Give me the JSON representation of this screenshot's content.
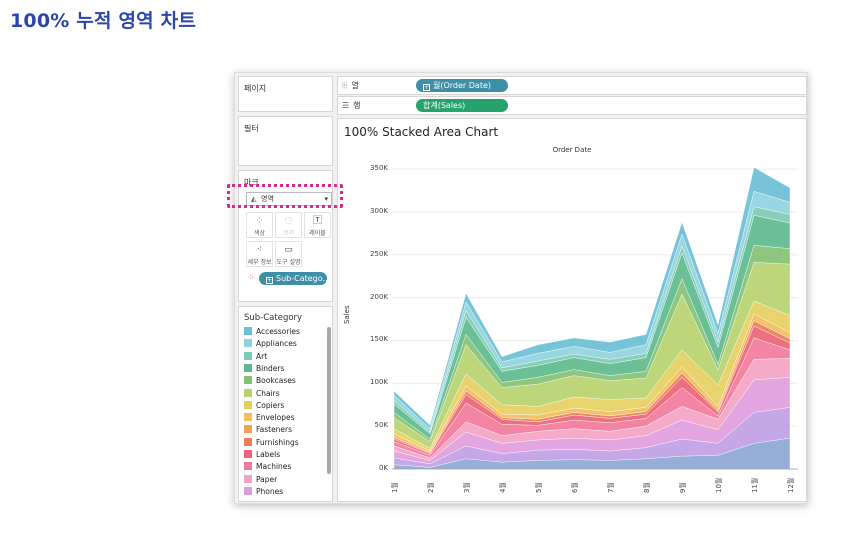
{
  "page": {
    "title": "100% 누적 영역 차트"
  },
  "panels": {
    "pages": "페이지",
    "filters": "필터",
    "marks": "마크",
    "legend_title": "Sub-Category"
  },
  "shelves": {
    "columns": {
      "label": "열",
      "pill": "월(Order Date)"
    },
    "rows": {
      "label": "행",
      "pill": "합계(Sales)"
    }
  },
  "marks": {
    "type": "영역",
    "buttons": [
      "색상",
      "크기",
      "레이블",
      "세부 정보",
      "도구 설명"
    ],
    "color_pill": "Sub-Catego.."
  },
  "legend": [
    {
      "name": "Accessories",
      "color": "#6bbfd6"
    },
    {
      "name": "Appliances",
      "color": "#8fd3de"
    },
    {
      "name": "Art",
      "color": "#7ccbb4"
    },
    {
      "name": "Binders",
      "color": "#5dba8e"
    },
    {
      "name": "Bookcases",
      "color": "#84c174"
    },
    {
      "name": "Chairs",
      "color": "#b7d36e"
    },
    {
      "name": "Copiers",
      "color": "#e6d063"
    },
    {
      "name": "Envelopes",
      "color": "#f3be5a"
    },
    {
      "name": "Fasteners",
      "color": "#f5a052"
    },
    {
      "name": "Furnishings",
      "color": "#ec7b5a"
    },
    {
      "name": "Labels",
      "color": "#ec6476"
    },
    {
      "name": "Machines",
      "color": "#f2799b"
    },
    {
      "name": "Paper",
      "color": "#f5a3c4"
    },
    {
      "name": "Phones",
      "color": "#e09ddc"
    }
  ],
  "chart_data": {
    "type": "area",
    "title": "100% Stacked Area Chart",
    "subtitle": "Order Date",
    "ylabel": "Sales",
    "ylim": [
      0,
      350000
    ],
    "yticks": [
      "0K",
      "50K",
      "100K",
      "150K",
      "200K",
      "250K",
      "300K",
      "350K"
    ],
    "categories": [
      "1월",
      "2월",
      "3월",
      "4월",
      "5월",
      "6월",
      "7월",
      "8월",
      "9월",
      "10월",
      "11월",
      "12월"
    ],
    "series": [
      {
        "color": "#8ea7d6",
        "values": [
          5000,
          2000,
          12000,
          8000,
          10000,
          11000,
          10000,
          12000,
          15000,
          16000,
          30000,
          36000
        ]
      },
      {
        "color": "#c09ee4",
        "values": [
          8000,
          4000,
          15000,
          10000,
          12000,
          12000,
          11000,
          13000,
          20000,
          14000,
          36000,
          36000
        ]
      },
      {
        "color": "#e09ddc",
        "values": [
          8000,
          4000,
          16000,
          12000,
          12000,
          13000,
          13000,
          14000,
          22000,
          16000,
          38000,
          35000
        ]
      },
      {
        "color": "#f5a3c4",
        "values": [
          6000,
          3000,
          12000,
          9000,
          10000,
          11000,
          10000,
          11000,
          16000,
          12000,
          24000,
          22000
        ]
      },
      {
        "color": "#f2799b",
        "values": [
          5000,
          3000,
          22000,
          13000,
          7000,
          10000,
          10000,
          9000,
          22000,
          4000,
          25000,
          10000
        ]
      },
      {
        "color": "#ec6476",
        "values": [
          3000,
          2000,
          10000,
          6000,
          4000,
          6000,
          5000,
          5000,
          12000,
          4000,
          14000,
          8000
        ]
      },
      {
        "color": "#ec7b5a",
        "values": [
          2000,
          1000,
          4000,
          2000,
          3000,
          3000,
          3000,
          3000,
          5000,
          2000,
          6000,
          5000
        ]
      },
      {
        "color": "#f3be5a",
        "values": [
          4000,
          2000,
          6000,
          4000,
          5000,
          5000,
          5000,
          5000,
          7000,
          5000,
          8000,
          7000
        ]
      },
      {
        "color": "#e6d063",
        "values": [
          6000,
          3000,
          14000,
          11000,
          10000,
          13000,
          14000,
          11000,
          20000,
          25000,
          15000,
          20000
        ]
      },
      {
        "color": "#b7d36e",
        "values": [
          13000,
          8000,
          34000,
          20000,
          26000,
          25000,
          22000,
          23000,
          65000,
          18000,
          45000,
          60000
        ]
      },
      {
        "color": "#84c174",
        "values": [
          6000,
          3000,
          12000,
          6000,
          8000,
          7000,
          6000,
          8000,
          18000,
          6000,
          20000,
          18000
        ]
      },
      {
        "color": "#5dba8e",
        "values": [
          10000,
          6000,
          20000,
          13000,
          14000,
          14000,
          14000,
          16000,
          30000,
          20000,
          35000,
          30000
        ]
      },
      {
        "color": "#7ccbb4",
        "values": [
          4000,
          2000,
          8000,
          4000,
          5000,
          4000,
          5000,
          5000,
          8000,
          6000,
          10000,
          10000
        ]
      },
      {
        "color": "#8fd3de",
        "values": [
          6000,
          4000,
          10000,
          7000,
          9000,
          9000,
          8000,
          10000,
          14000,
          10000,
          18000,
          14000
        ]
      },
      {
        "color": "#6bbfd6",
        "values": [
          5000,
          4000,
          10000,
          6000,
          10000,
          10000,
          12000,
          12000,
          14000,
          10000,
          28000,
          17000
        ]
      }
    ]
  }
}
